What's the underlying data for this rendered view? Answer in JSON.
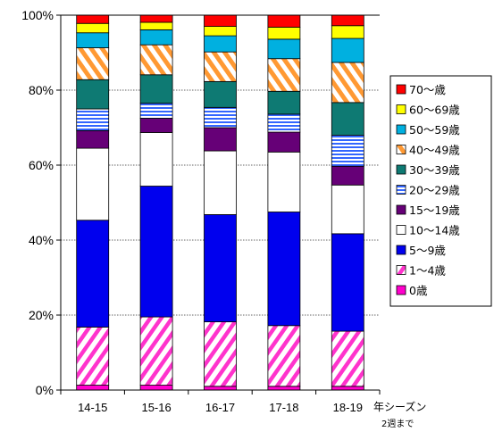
{
  "chart_data": {
    "type": "bar",
    "stacked": true,
    "percent": true,
    "categories": [
      "14-15",
      "15-16",
      "16-17",
      "17-18",
      "18-19"
    ],
    "x_note": "年シーズン",
    "x_note_sub": "2週まで",
    "yticks": [
      "0%",
      "20%",
      "40%",
      "60%",
      "80%",
      "100%"
    ],
    "ylim": [
      0,
      100
    ],
    "grid": true,
    "legend_position": "right",
    "series": [
      {
        "name": "0歳",
        "color": "#ff00cc",
        "pattern": "solid",
        "values": [
          1.3,
          1.3,
          1.0,
          1.0,
          1.0
        ]
      },
      {
        "name": "1～4歳",
        "color": "#ff33cc",
        "pattern": "diag",
        "values": [
          15.5,
          18.2,
          17.2,
          16.2,
          14.7
        ]
      },
      {
        "name": "5～9歳",
        "color": "#0000ee",
        "pattern": "solid",
        "values": [
          28.5,
          34.9,
          28.6,
          30.3,
          26.0
        ]
      },
      {
        "name": "10～14歳",
        "color": "#ffffff",
        "pattern": "solid",
        "values": [
          19.2,
          14.3,
          17.0,
          16.0,
          13.0
        ]
      },
      {
        "name": "15～19歳",
        "color": "#660077",
        "pattern": "solid",
        "values": [
          4.7,
          3.8,
          6.2,
          5.3,
          5.0
        ]
      },
      {
        "name": "20～29歳",
        "color": "#3366ff",
        "pattern": "hstripe",
        "values": [
          5.8,
          4.0,
          5.4,
          4.8,
          8.3
        ]
      },
      {
        "name": "30～39歳",
        "color": "#0e7a73",
        "pattern": "solid",
        "values": [
          7.8,
          7.6,
          6.9,
          6.1,
          8.7
        ]
      },
      {
        "name": "40～49歳",
        "color": "#ff9933",
        "pattern": "diag2",
        "values": [
          8.5,
          8.0,
          7.9,
          8.7,
          10.7
        ]
      },
      {
        "name": "50～59歳",
        "color": "#00b0e0",
        "pattern": "solid",
        "values": [
          4.0,
          4.0,
          4.3,
          5.2,
          6.4
        ]
      },
      {
        "name": "60～69歳",
        "color": "#ffff00",
        "pattern": "solid",
        "values": [
          2.5,
          2.0,
          2.5,
          3.2,
          3.4
        ]
      },
      {
        "name": "70～歳",
        "color": "#ff0000",
        "pattern": "solid",
        "values": [
          2.2,
          1.9,
          3.0,
          3.2,
          2.8
        ]
      }
    ]
  }
}
